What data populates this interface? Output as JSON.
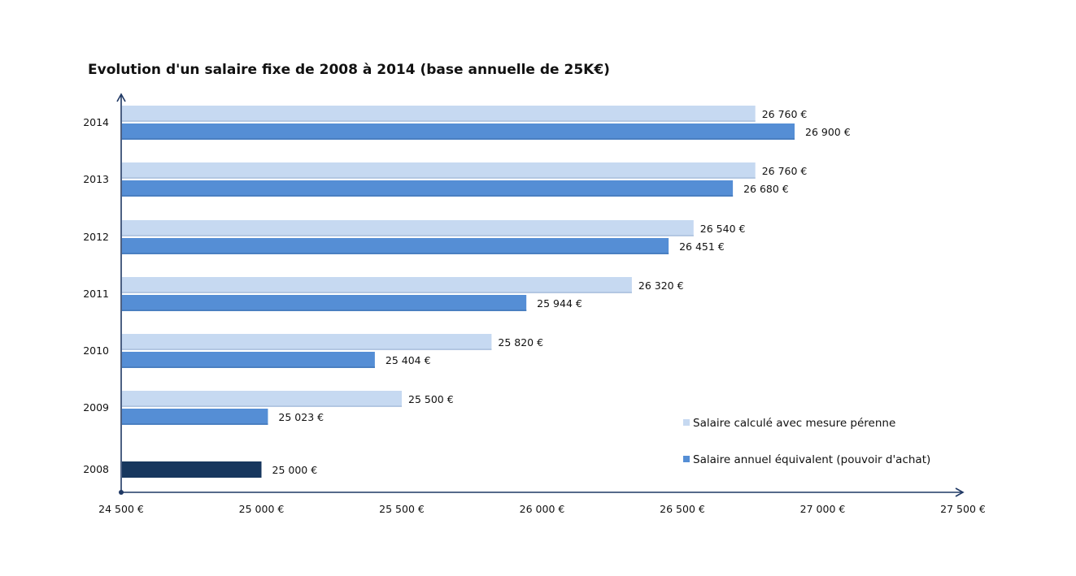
{
  "chart_data": {
    "type": "bar",
    "orientation": "horizontal",
    "title": "Evolution d'un salaire fixe de 2008 à 2014 (base annuelle de 25K€)",
    "xlabel": "",
    "ylabel": "",
    "xlim": [
      24500,
      27500
    ],
    "x_ticks": [
      24500,
      25000,
      25500,
      26000,
      26500,
      27000,
      27500
    ],
    "x_tick_labels": [
      "24 500 €",
      "25 000 €",
      "25 500 €",
      "26 000 €",
      "26 500 €",
      "27 000 €",
      "27 500 €"
    ],
    "categories": [
      "2014",
      "2013",
      "2012",
      "2011",
      "2010",
      "2009",
      "2008"
    ],
    "series": [
      {
        "name": "Salaire calculé avec mesure pérenne",
        "color": "#c6d9f1",
        "values": [
          26760,
          26760,
          26540,
          26320,
          25820,
          25500,
          null
        ],
        "labels": [
          "26 760 €",
          "26 760 €",
          "26 540 €",
          "26 320 €",
          "25 820 €",
          "25 500 €",
          ""
        ]
      },
      {
        "name": "Salaire annuel équivalent (pouvoir d'achat)",
        "color": "#558ed5",
        "values": [
          26900,
          26680,
          26451,
          25944,
          25404,
          25023,
          null
        ],
        "labels": [
          "26 900 €",
          "26 680 €",
          "26 451 €",
          "25 944 €",
          "25 404 €",
          "25 023 €",
          ""
        ]
      }
    ],
    "base_bar": {
      "category": "2008",
      "value": 25000,
      "label": "25 000 €",
      "color": "#17375e"
    },
    "axis_color": "#1f3864",
    "grid": false,
    "legend_position": "bottom-right"
  }
}
